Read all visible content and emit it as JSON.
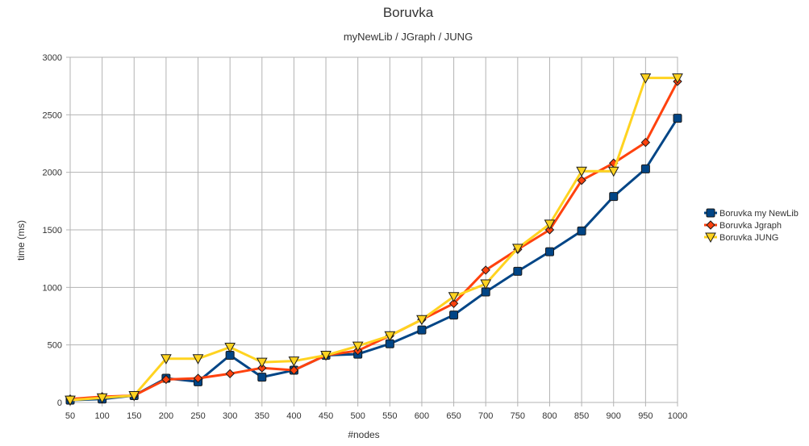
{
  "chart_data": {
    "type": "line",
    "title": "Boruvka",
    "subtitle": "myNewLib / JGraph / JUNG",
    "xlabel": "#nodes",
    "ylabel": "time (ms)",
    "x": [
      50,
      100,
      150,
      200,
      250,
      300,
      350,
      400,
      450,
      500,
      550,
      600,
      650,
      700,
      750,
      800,
      850,
      900,
      950,
      1000
    ],
    "ylim": [
      0,
      3000
    ],
    "yticks": [
      0,
      500,
      1000,
      1500,
      2000,
      2500,
      3000
    ],
    "grid": true,
    "legend_position": "right",
    "series": [
      {
        "name": "Boruvka my NewLib",
        "color": "#004586",
        "marker": "square",
        "values": [
          20,
          30,
          60,
          210,
          180,
          410,
          220,
          280,
          410,
          420,
          510,
          630,
          760,
          960,
          1140,
          1310,
          1490,
          1790,
          2030,
          2470
        ]
      },
      {
        "name": "Boruvka Jgraph",
        "color": "#ff420e",
        "marker": "diamond",
        "values": [
          30,
          50,
          60,
          200,
          210,
          250,
          300,
          280,
          410,
          450,
          580,
          720,
          860,
          1150,
          1330,
          1500,
          1930,
          2080,
          2260,
          2790
        ]
      },
      {
        "name": "Boruvka JUNG",
        "color": "#ffd320",
        "marker": "triangle-down",
        "values": [
          20,
          40,
          60,
          380,
          380,
          480,
          350,
          360,
          410,
          490,
          580,
          720,
          920,
          1030,
          1340,
          1550,
          2010,
          2010,
          2820,
          2820
        ]
      }
    ]
  }
}
